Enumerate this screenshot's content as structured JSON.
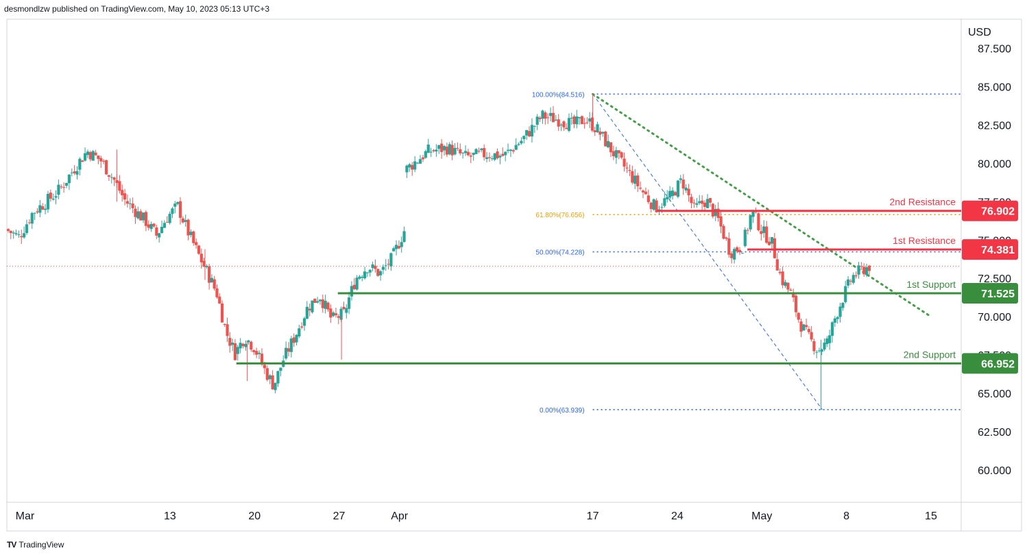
{
  "header": {
    "published_by": "desmondlzw published on TradingView.com, May 10, 2023 05:13 UTC+3"
  },
  "footer": {
    "brand": "TradingView",
    "logo": "TV"
  },
  "colors": {
    "up": "#26a69a",
    "down": "#ef5350",
    "support": "#388e3c",
    "resistance": "#f23645",
    "fib_blue": "#2962ff",
    "fib_orange": "#f59d00",
    "trend": "#43a047",
    "text": "#131722",
    "axis_line": "#d1d4dc"
  },
  "chart_data": {
    "type": "candlestick",
    "currency_label": "USD",
    "y_ticks": [
      "87.500",
      "85.000",
      "82.500",
      "80.000",
      "77.500",
      "75.000",
      "72.500",
      "70.000",
      "67.500",
      "65.000",
      "62.500",
      "60.000"
    ],
    "y_tick_values": [
      87.5,
      85,
      82.5,
      80,
      77.5,
      75,
      72.5,
      70,
      67.5,
      65,
      62.5,
      60
    ],
    "x_ticks": [
      {
        "label": "Mar",
        "day": 0
      },
      {
        "label": "13",
        "day": 12
      },
      {
        "label": "20",
        "day": 19
      },
      {
        "label": "27",
        "day": 26
      },
      {
        "label": "Apr",
        "day": 31
      },
      {
        "label": "17",
        "day": 47
      },
      {
        "label": "24",
        "day": 54
      },
      {
        "label": "May",
        "day": 61
      },
      {
        "label": "8",
        "day": 68
      },
      {
        "label": "15",
        "day": 75
      }
    ],
    "ylim": [
      57.9,
      89.4
    ],
    "xlim_days": [
      -1.5,
      77.5
    ],
    "last_price": 73.3,
    "levels": [
      {
        "name": "2nd Resistance",
        "value": 76.902,
        "label": "76.902",
        "kind": "resistance",
        "from_day": 52.3
      },
      {
        "name": "1st Resistance",
        "value": 74.381,
        "label": "74.381",
        "kind": "resistance",
        "from_day": 59.8
      },
      {
        "name": "1st Support",
        "value": 71.525,
        "label": "71.525",
        "kind": "support",
        "from_day": 25.9
      },
      {
        "name": "2nd Support",
        "value": 66.952,
        "label": "66.952",
        "kind": "support",
        "from_day": 17.5
      }
    ],
    "fib_levels": [
      {
        "label": "100.00%(84.516)",
        "value": 84.516,
        "color": "blue"
      },
      {
        "label": "61.80%(76.656)",
        "value": 76.656,
        "color": "orange"
      },
      {
        "label": "50.00%(74.228)",
        "value": 74.228,
        "color": "blue"
      },
      {
        "label": "0.00%(63.939)",
        "value": 63.939,
        "color": "blue"
      }
    ],
    "fib_start_day": 47,
    "fib_diag": [
      [
        47,
        84.516
      ],
      [
        66,
        63.939
      ]
    ],
    "trendline": [
      [
        47,
        84.516
      ],
      [
        75,
        70.0
      ]
    ],
    "candle_segments": [
      {
        "start": -1.5,
        "end": 7.5,
        "points": [
          75.7,
          75.2,
          76.8,
          77.5,
          78.3,
          79.6,
          80.8,
          80.2,
          78.9
        ]
      },
      {
        "start": 7.5,
        "end": 14.5,
        "points": [
          78.9,
          77.6,
          76.9,
          76.2,
          75.3,
          76.5,
          77.2,
          75.5,
          74.0
        ]
      },
      {
        "start": 14.5,
        "end": 17.5,
        "points": [
          74.0,
          72.8,
          71.5,
          69.0,
          67.6
        ]
      },
      {
        "start": 17.5,
        "end": 21.5,
        "points": [
          67.6,
          68.7,
          68.0,
          66.6,
          65.5,
          67.2
        ]
      },
      {
        "start": 21.5,
        "end": 26.5,
        "points": [
          67.2,
          68.8,
          70.6,
          71.4,
          69.8,
          70.2
        ]
      },
      {
        "start": 26.5,
        "end": 31.5,
        "points": [
          70.2,
          72.5,
          73.3,
          72.8,
          73.8,
          75.6
        ]
      },
      {
        "start": 31.5,
        "end": 33.5,
        "points": [
          79.5,
          80.8
        ]
      },
      {
        "start": 33.5,
        "end": 44.5,
        "points": [
          80.8,
          81.0,
          80.4,
          80.6,
          80.5,
          81.6,
          83.1,
          82.8
        ]
      },
      {
        "start": 44.5,
        "end": 47.5,
        "points": [
          82.8,
          82.5,
          82.9,
          82.2
        ]
      },
      {
        "start": 47.5,
        "end": 53.5,
        "points": [
          82.2,
          80.8,
          79.6,
          78.3,
          77.1,
          77.8
        ]
      },
      {
        "start": 53.5,
        "end": 59.5,
        "points": [
          77.8,
          78.9,
          77.0,
          77.6,
          76.3,
          74.2,
          74.6
        ]
      },
      {
        "start": 59.5,
        "end": 63.5,
        "points": [
          74.6,
          76.9,
          75.6,
          74.9,
          72.5,
          71.5
        ]
      },
      {
        "start": 63.5,
        "end": 66.5,
        "points": [
          71.5,
          69.6,
          68.6,
          67.8,
          68.3
        ]
      },
      {
        "start": 66.5,
        "end": 70.0,
        "points": [
          68.3,
          70.0,
          71.4,
          72.6,
          73.0,
          73.3
        ]
      }
    ],
    "spikes": [
      {
        "day": 14.9,
        "low": 72.4,
        "high": 74.4
      },
      {
        "day": 18.4,
        "low": 65.8,
        "high": 68.4
      },
      {
        "day": 26.2,
        "low": 67.2,
        "high": 70.0
      },
      {
        "day": 47.0,
        "low": 82.4,
        "high": 84.516
      },
      {
        "day": 65.9,
        "low": 63.939,
        "high": 68.5
      },
      {
        "day": 7.6,
        "low": 77.5,
        "high": 80.9
      }
    ]
  }
}
